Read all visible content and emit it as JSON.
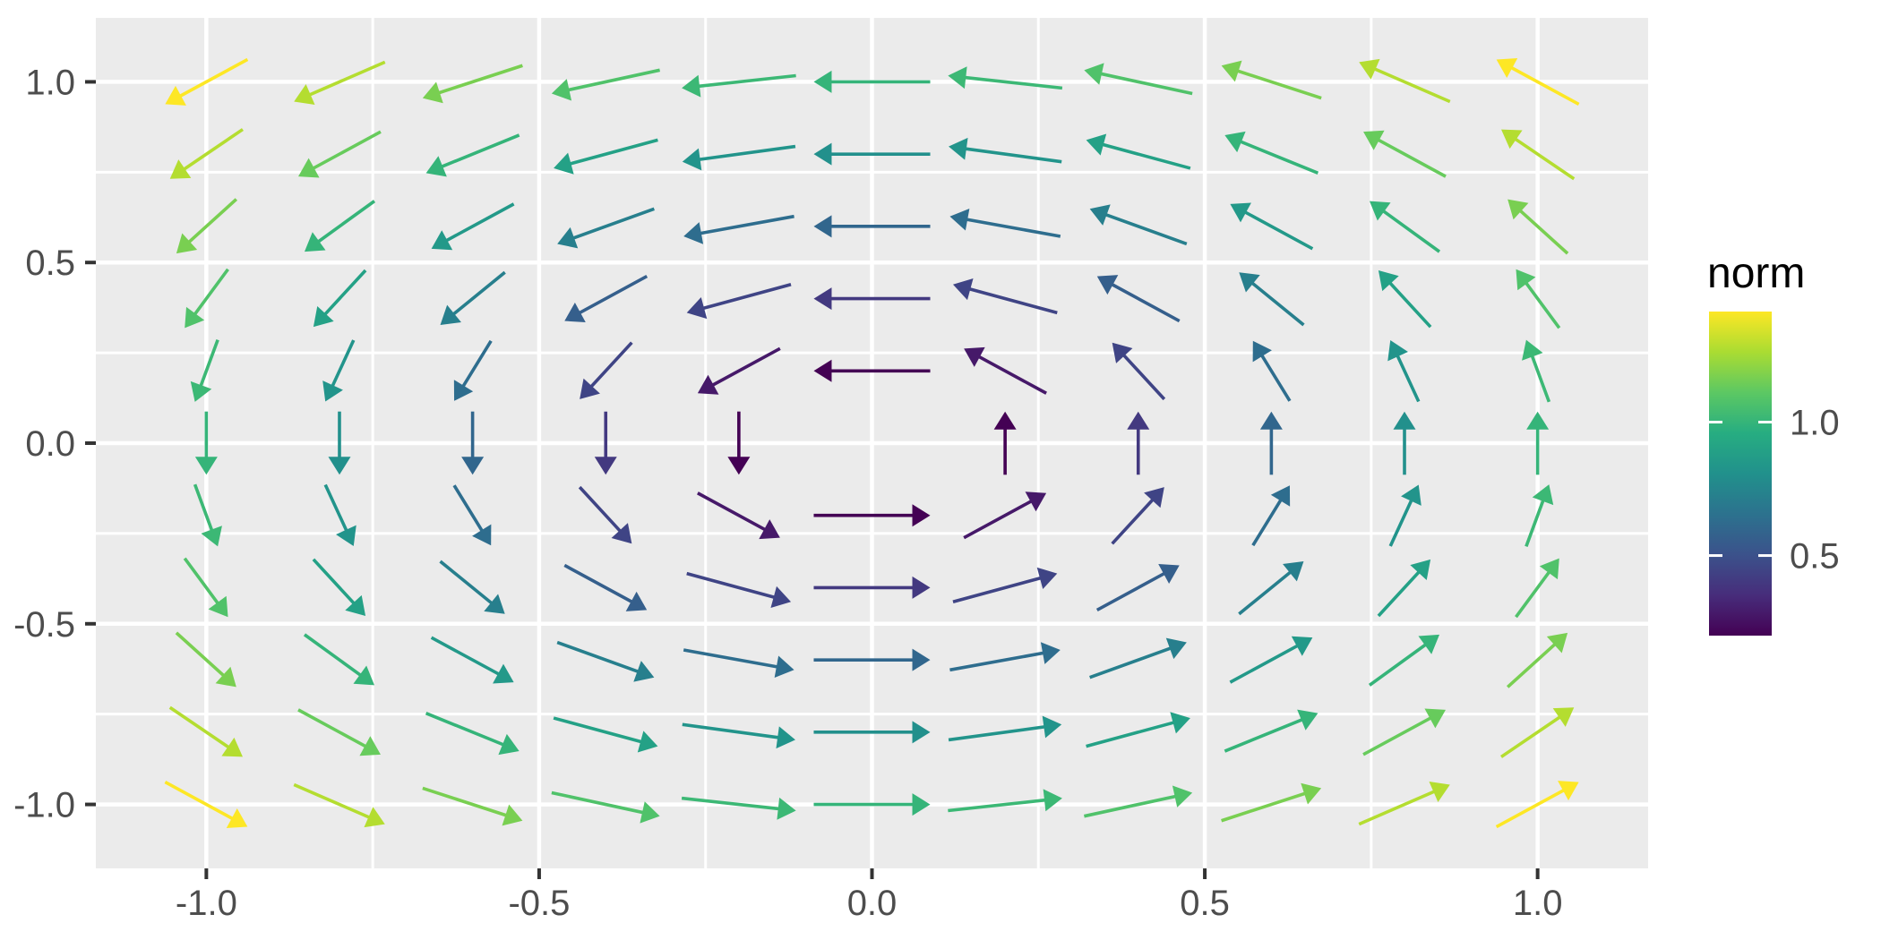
{
  "chart_data": {
    "type": "quiver",
    "title": "",
    "xlabel": "",
    "ylabel": "",
    "x_grid": [
      -1.0,
      -0.8,
      -0.6,
      -0.4,
      -0.2,
      0.0,
      0.2,
      0.4,
      0.6,
      0.8,
      1.0
    ],
    "y_grid": [
      -1.0,
      -0.8,
      -0.6,
      -0.4,
      -0.2,
      0.0,
      0.2,
      0.4,
      0.6,
      0.8,
      1.0
    ],
    "field": {
      "u": "-y",
      "v": "x"
    },
    "skip_zero_vector": true,
    "color_by": "norm",
    "norm_formula": "sqrt(x^2 + y^2)",
    "norm_domain": [
      0.2,
      1.4142
    ],
    "arrow_length_data_units": 0.175,
    "xlim": [
      -1.166,
      1.166
    ],
    "ylim": [
      -1.177,
      1.177
    ],
    "x_ticks": {
      "values": [
        -1.0,
        -0.5,
        0.0,
        0.5,
        1.0
      ],
      "labels": [
        "-1.0",
        "-0.5",
        "0.0",
        "0.5",
        "1.0"
      ]
    },
    "y_ticks": {
      "values": [
        -1.0,
        -0.5,
        0.0,
        0.5,
        1.0
      ],
      "labels": [
        "1.0",
        "0.5",
        "0.0",
        "-0.5",
        "-1.0"
      ],
      "label_order_top_to_bottom": true
    },
    "x_minor_ticks": [
      -0.75,
      -0.25,
      0.25,
      0.75
    ],
    "y_minor_ticks": [
      -0.75,
      -0.25,
      0.25,
      0.75
    ],
    "grid_on": true,
    "legend": {
      "position": "right",
      "title": "norm",
      "colormap": "viridis",
      "ticks": [
        {
          "value": 1.0,
          "label": "1.0"
        },
        {
          "value": 0.5,
          "label": "0.5"
        }
      ]
    },
    "colors": {
      "panel_bg": "#EBEBEB",
      "gridline": "#FFFFFF",
      "axis_text": "#4D4D4D",
      "tick_mark": "#333333",
      "legend_title": "#000000",
      "legend_tick_mark": "#FFFFFF"
    },
    "viridis_stops": [
      "#440154",
      "#472d7b",
      "#3b528b",
      "#2c728e",
      "#21918c",
      "#27ad81",
      "#5cc863",
      "#aadc32",
      "#fde725"
    ]
  }
}
